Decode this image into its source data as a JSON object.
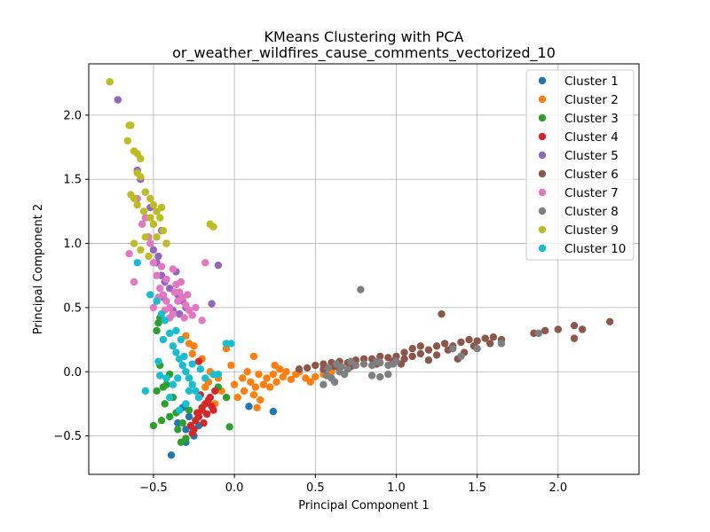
{
  "chart_data": {
    "type": "scatter",
    "title": "KMeans Clustering with PCA",
    "subtitle": "or_weather_wildfires_cause_comments_vectorized_10",
    "xlabel": "Principal Component 1",
    "ylabel": "Principal Component 2",
    "xlim": [
      -0.9,
      2.5
    ],
    "ylim": [
      -0.8,
      2.4
    ],
    "xticks": [
      -0.5,
      0.0,
      0.5,
      1.0,
      1.5,
      2.0
    ],
    "xtick_labels": [
      "−0.5",
      "0.0",
      "0.5",
      "1.0",
      "1.5",
      "2.0"
    ],
    "yticks": [
      -0.5,
      0.0,
      0.5,
      1.0,
      1.5,
      2.0
    ],
    "ytick_labels": [
      "−0.5",
      "0.0",
      "0.5",
      "1.0",
      "1.5",
      "2.0"
    ],
    "grid": true,
    "legend_position": "top-right",
    "series": [
      {
        "name": "Cluster 1",
        "color": "#1f77b4",
        "points": [
          [
            -0.39,
            -0.65
          ],
          [
            -0.3,
            -0.45
          ],
          [
            -0.25,
            -0.5
          ],
          [
            -0.28,
            -0.35
          ],
          [
            -0.32,
            -0.28
          ],
          [
            0.09,
            -0.27
          ],
          [
            0.24,
            -0.31
          ],
          [
            -0.35,
            -0.4
          ],
          [
            -0.22,
            -0.42
          ],
          [
            -0.3,
            -0.55
          ]
        ]
      },
      {
        "name": "Cluster 2",
        "color": "#ff7f0e",
        "points": [
          [
            -0.05,
            0.18
          ],
          [
            0.12,
            0.12
          ],
          [
            -0.15,
            0.0
          ],
          [
            -0.1,
            -0.05
          ],
          [
            -0.2,
            0.1
          ],
          [
            -0.25,
            0.2
          ],
          [
            -0.3,
            0.28
          ],
          [
            -0.28,
            0.22
          ],
          [
            -0.18,
            -0.12
          ],
          [
            -0.08,
            -0.15
          ],
          [
            -0.02,
            0.05
          ],
          [
            0.0,
            -0.1
          ],
          [
            0.05,
            -0.05
          ],
          [
            0.08,
            0.0
          ],
          [
            0.1,
            -0.08
          ],
          [
            0.12,
            -0.18
          ],
          [
            0.14,
            -0.28
          ],
          [
            0.16,
            -0.22
          ],
          [
            0.18,
            -0.1
          ],
          [
            0.2,
            -0.05
          ],
          [
            0.22,
            -0.12
          ],
          [
            0.24,
            -0.02
          ],
          [
            0.26,
            -0.08
          ],
          [
            0.28,
            0.02
          ],
          [
            0.3,
            -0.04
          ],
          [
            0.32,
            0.0
          ],
          [
            0.35,
            -0.06
          ],
          [
            0.38,
            -0.02
          ],
          [
            0.4,
            0.0
          ],
          [
            0.44,
            -0.05
          ],
          [
            0.47,
            -0.08
          ],
          [
            0.5,
            -0.04
          ],
          [
            0.55,
            -0.02
          ],
          [
            0.6,
            0.0
          ],
          [
            -0.22,
            -0.2
          ],
          [
            -0.12,
            -0.25
          ],
          [
            -0.26,
            0.14
          ],
          [
            0.13,
            -0.12
          ],
          [
            0.06,
            -0.15
          ],
          [
            0.25,
            0.05
          ],
          [
            0.02,
            -0.2
          ],
          [
            -0.16,
            -0.08
          ],
          [
            0.15,
            -0.02
          ]
        ]
      },
      {
        "name": "Cluster 3",
        "color": "#2ca02c",
        "points": [
          [
            -0.5,
            -0.42
          ],
          [
            -0.45,
            -0.38
          ],
          [
            -0.4,
            -0.35
          ],
          [
            -0.43,
            -0.25
          ],
          [
            -0.46,
            0.05
          ],
          [
            -0.48,
            -0.15
          ],
          [
            -0.42,
            -0.1
          ],
          [
            -0.38,
            -0.2
          ],
          [
            -0.35,
            -0.45
          ],
          [
            -0.3,
            -0.52
          ],
          [
            -0.32,
            -0.4
          ],
          [
            -0.03,
            -0.43
          ],
          [
            -0.05,
            -0.2
          ],
          [
            -0.1,
            -0.12
          ],
          [
            -0.47,
            0.38
          ],
          [
            -0.46,
            0.42
          ],
          [
            -0.48,
            0.32
          ],
          [
            -0.4,
            -0.02
          ],
          [
            -0.36,
            -0.32
          ],
          [
            -0.33,
            -0.55
          ],
          [
            -0.28,
            -0.3
          ],
          [
            -0.44,
            -0.12
          ]
        ]
      },
      {
        "name": "Cluster 4",
        "color": "#d62728",
        "points": [
          [
            -0.25,
            -0.45
          ],
          [
            -0.22,
            -0.35
          ],
          [
            -0.2,
            -0.3
          ],
          [
            -0.18,
            -0.25
          ],
          [
            -0.15,
            -0.2
          ],
          [
            -0.12,
            -0.15
          ],
          [
            -0.22,
            0.08
          ],
          [
            -0.27,
            -0.42
          ],
          [
            -0.24,
            -0.38
          ],
          [
            -0.2,
            -0.28
          ],
          [
            -0.17,
            -0.33
          ],
          [
            -0.14,
            -0.27
          ],
          [
            -0.19,
            -0.4
          ],
          [
            -0.23,
            -0.32
          ],
          [
            -0.16,
            -0.22
          ],
          [
            -0.21,
            -0.18
          ],
          [
            -0.26,
            -0.48
          ],
          [
            -0.13,
            -0.3
          ]
        ]
      },
      {
        "name": "Cluster 5",
        "color": "#9467bd",
        "points": [
          [
            -0.72,
            2.12
          ],
          [
            -0.6,
            1.57
          ],
          [
            -0.58,
            1.5
          ],
          [
            -0.52,
            1.28
          ],
          [
            -0.45,
            1.1
          ],
          [
            -0.42,
            1.0
          ],
          [
            -0.5,
            0.95
          ],
          [
            -0.48,
            0.85
          ],
          [
            -0.45,
            0.75
          ],
          [
            -0.1,
            0.83
          ],
          [
            -0.14,
            0.53
          ],
          [
            -0.4,
            0.65
          ],
          [
            -0.35,
            0.6
          ],
          [
            -0.32,
            0.55
          ],
          [
            -0.38,
            0.48
          ],
          [
            -0.43,
            0.7
          ],
          [
            -0.36,
            0.78
          ],
          [
            -0.3,
            0.5
          ],
          [
            -0.55,
            1.4
          ],
          [
            -0.47,
            0.9
          ],
          [
            -0.44,
            0.58
          ],
          [
            -0.34,
            0.45
          ]
        ]
      },
      {
        "name": "Cluster 6",
        "color": "#8c564b",
        "points": [
          [
            0.4,
            0.02
          ],
          [
            0.45,
            0.03
          ],
          [
            0.5,
            0.05
          ],
          [
            0.55,
            0.06
          ],
          [
            0.6,
            0.07
          ],
          [
            0.65,
            0.08
          ],
          [
            0.7,
            0.07
          ],
          [
            0.75,
            0.09
          ],
          [
            0.8,
            0.1
          ],
          [
            0.85,
            0.1
          ],
          [
            0.9,
            0.12
          ],
          [
            0.95,
            0.11
          ],
          [
            1.0,
            0.12
          ],
          [
            1.05,
            0.15
          ],
          [
            1.1,
            0.18
          ],
          [
            1.15,
            0.2
          ],
          [
            1.2,
            0.17
          ],
          [
            1.25,
            0.2
          ],
          [
            1.3,
            0.22
          ],
          [
            1.35,
            0.2
          ],
          [
            1.4,
            0.23
          ],
          [
            1.45,
            0.25
          ],
          [
            1.5,
            0.24
          ],
          [
            1.55,
            0.26
          ],
          [
            1.6,
            0.27
          ],
          [
            1.65,
            0.25
          ],
          [
            1.85,
            0.3
          ],
          [
            1.92,
            0.32
          ],
          [
            2.0,
            0.33
          ],
          [
            2.1,
            0.36
          ],
          [
            2.15,
            0.33
          ],
          [
            2.1,
            0.26
          ],
          [
            2.32,
            0.39
          ],
          [
            1.28,
            0.45
          ],
          [
            1.03,
            0.06
          ],
          [
            1.1,
            0.12
          ],
          [
            1.2,
            0.09
          ],
          [
            1.32,
            0.17
          ],
          [
            1.38,
            0.1
          ],
          [
            1.42,
            0.15
          ],
          [
            1.05,
            0.1
          ],
          [
            0.62,
            0.04
          ],
          [
            0.88,
            0.06
          ],
          [
            1.15,
            0.14
          ],
          [
            1.25,
            0.13
          ],
          [
            0.72,
            0.04
          ],
          [
            0.55,
            0.02
          ],
          [
            0.98,
            0.08
          ],
          [
            1.48,
            0.2
          ],
          [
            1.58,
            0.22
          ]
        ]
      },
      {
        "name": "Cluster 7",
        "color": "#e377c2",
        "points": [
          [
            -0.65,
            0.92
          ],
          [
            -0.62,
            0.7
          ],
          [
            -0.6,
            1.35
          ],
          [
            -0.55,
            1.2
          ],
          [
            -0.52,
            1.0
          ],
          [
            -0.5,
            0.85
          ],
          [
            -0.48,
            0.75
          ],
          [
            -0.46,
            0.65
          ],
          [
            -0.44,
            0.6
          ],
          [
            -0.42,
            0.55
          ],
          [
            -0.4,
            0.5
          ],
          [
            -0.38,
            0.45
          ],
          [
            -0.36,
            0.68
          ],
          [
            -0.34,
            0.62
          ],
          [
            -0.32,
            0.58
          ],
          [
            -0.3,
            0.52
          ],
          [
            -0.28,
            0.48
          ],
          [
            -0.26,
            0.44
          ],
          [
            -0.2,
            0.4
          ],
          [
            -0.18,
            0.85
          ],
          [
            -0.5,
            0.5
          ],
          [
            -0.45,
            0.82
          ],
          [
            -0.42,
            0.72
          ],
          [
            -0.38,
            0.8
          ],
          [
            -0.35,
            0.55
          ],
          [
            -0.33,
            0.7
          ],
          [
            -0.31,
            0.42
          ],
          [
            -0.29,
            0.6
          ],
          [
            -0.57,
            1.15
          ],
          [
            -0.53,
            1.05
          ],
          [
            -0.24,
            0.5
          ],
          [
            -0.4,
            0.42
          ],
          [
            -0.37,
            0.62
          ],
          [
            -0.47,
            0.58
          ],
          [
            -0.43,
            0.48
          ]
        ]
      },
      {
        "name": "Cluster 8",
        "color": "#7f7f7f",
        "points": [
          [
            0.78,
            0.64
          ],
          [
            0.55,
            -0.1
          ],
          [
            0.6,
            -0.05
          ],
          [
            0.65,
            0.0
          ],
          [
            0.7,
            0.02
          ],
          [
            0.75,
            0.05
          ],
          [
            0.8,
            0.06
          ],
          [
            0.85,
            0.05
          ],
          [
            0.9,
            0.07
          ],
          [
            0.95,
            0.05
          ],
          [
            1.0,
            0.08
          ],
          [
            0.95,
            -0.02
          ],
          [
            0.9,
            -0.04
          ],
          [
            0.85,
            -0.03
          ],
          [
            1.35,
            0.18
          ],
          [
            1.4,
            0.12
          ],
          [
            1.5,
            0.18
          ],
          [
            1.65,
            0.22
          ],
          [
            1.88,
            0.3
          ],
          [
            0.58,
            0.03
          ],
          [
            0.62,
            -0.08
          ],
          [
            0.68,
            -0.02
          ],
          [
            0.72,
            0.08
          ],
          [
            0.88,
            0.08
          ],
          [
            0.98,
            0.06
          ],
          [
            0.63,
            0.06
          ],
          [
            0.57,
            -0.03
          ],
          [
            0.66,
            0.04
          ]
        ]
      },
      {
        "name": "Cluster 9",
        "color": "#bcbd22",
        "points": [
          [
            -0.77,
            2.26
          ],
          [
            -0.65,
            1.92
          ],
          [
            -0.66,
            1.8
          ],
          [
            -0.62,
            1.72
          ],
          [
            -0.6,
            1.7
          ],
          [
            -0.58,
            1.66
          ],
          [
            -0.6,
            1.55
          ],
          [
            -0.58,
            1.52
          ],
          [
            -0.64,
            1.38
          ],
          [
            -0.62,
            1.35
          ],
          [
            -0.6,
            1.3
          ],
          [
            -0.55,
            1.4
          ],
          [
            -0.52,
            1.35
          ],
          [
            -0.5,
            1.3
          ],
          [
            -0.48,
            1.25
          ],
          [
            -0.46,
            1.2
          ],
          [
            -0.44,
            1.1
          ],
          [
            -0.42,
            1.0
          ],
          [
            -0.5,
            1.15
          ],
          [
            -0.55,
            1.05
          ],
          [
            -0.58,
            0.95
          ],
          [
            -0.62,
            1.0
          ],
          [
            -0.53,
            0.9
          ],
          [
            -0.15,
            1.15
          ],
          [
            -0.13,
            1.13
          ],
          [
            -0.64,
            1.92
          ],
          [
            -0.45,
            1.28
          ],
          [
            -0.48,
            1.05
          ],
          [
            -0.56,
            1.25
          ],
          [
            -0.52,
            1.2
          ]
        ]
      },
      {
        "name": "Cluster 10",
        "color": "#17becf",
        "points": [
          [
            -0.6,
            0.85
          ],
          [
            -0.52,
            0.6
          ],
          [
            -0.48,
            0.55
          ],
          [
            -0.45,
            0.45
          ],
          [
            -0.43,
            0.4
          ],
          [
            -0.44,
            0.25
          ],
          [
            -0.4,
            0.3
          ],
          [
            -0.38,
            0.2
          ],
          [
            -0.36,
            0.15
          ],
          [
            -0.34,
            0.1
          ],
          [
            -0.32,
            0.05
          ],
          [
            -0.3,
            0.0
          ],
          [
            -0.28,
            -0.05
          ],
          [
            -0.26,
            -0.1
          ],
          [
            -0.24,
            -0.15
          ],
          [
            -0.22,
            -0.2
          ],
          [
            -0.35,
            -0.05
          ],
          [
            -0.38,
            -0.1
          ],
          [
            -0.4,
            -0.2
          ],
          [
            -0.34,
            -0.3
          ],
          [
            -0.3,
            -0.25
          ],
          [
            -0.28,
            -0.15
          ],
          [
            -0.05,
            0.22
          ],
          [
            -0.02,
            0.22
          ],
          [
            -0.13,
            -0.02
          ],
          [
            -0.55,
            -0.15
          ],
          [
            -0.47,
            0.08
          ],
          [
            -0.42,
            -0.05
          ],
          [
            -0.46,
            -0.03
          ],
          [
            -0.36,
            0.32
          ],
          [
            -0.33,
            0.25
          ],
          [
            -0.31,
            0.12
          ],
          [
            -0.26,
            0.06
          ],
          [
            -0.21,
            0.02
          ],
          [
            -0.18,
            -0.05
          ],
          [
            -0.1,
            -0.02
          ]
        ]
      }
    ]
  }
}
